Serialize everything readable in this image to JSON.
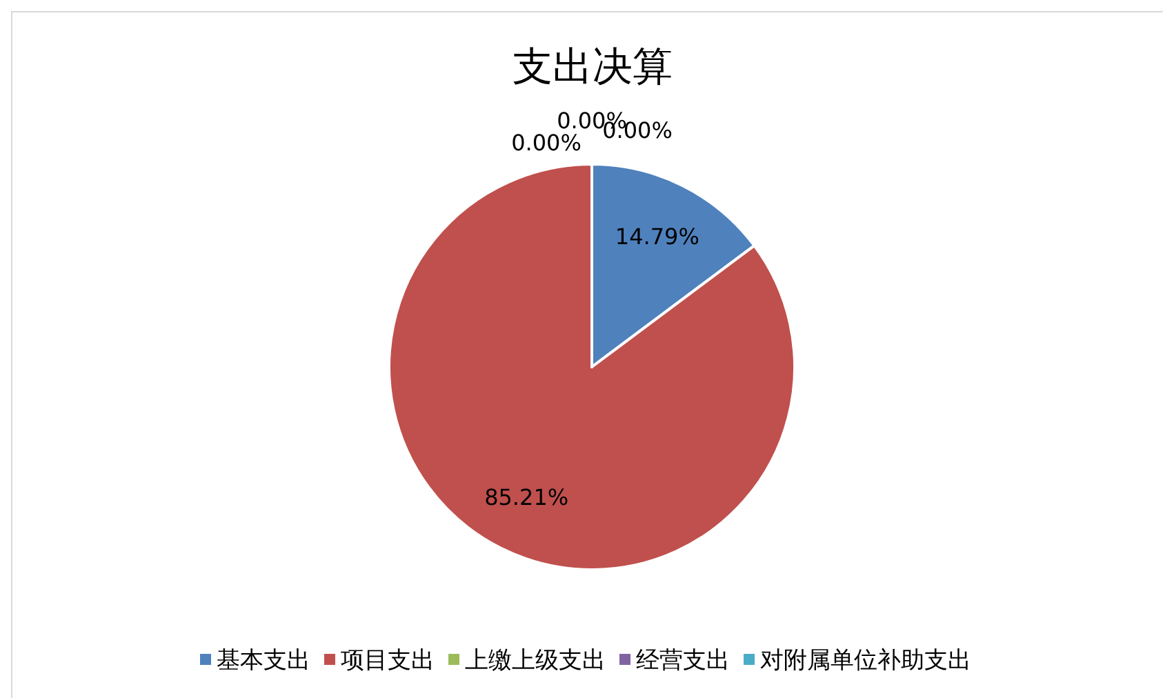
{
  "chart_data": {
    "type": "pie",
    "title": "支出决算",
    "categories": [
      "基本支出",
      "项目支出",
      "上缴上级支出",
      "经营支出",
      "对附属单位补助支出"
    ],
    "values": [
      14.79,
      85.21,
      0,
      0,
      0
    ],
    "colors": [
      "#4f81bd",
      "#c0504d",
      "#9bbb59",
      "#8064a2",
      "#4bacc6"
    ],
    "value_labels": [
      "14.79%",
      "85.21%",
      "0.00%",
      "0.00%",
      "0.00%"
    ],
    "legend": "bottom"
  }
}
